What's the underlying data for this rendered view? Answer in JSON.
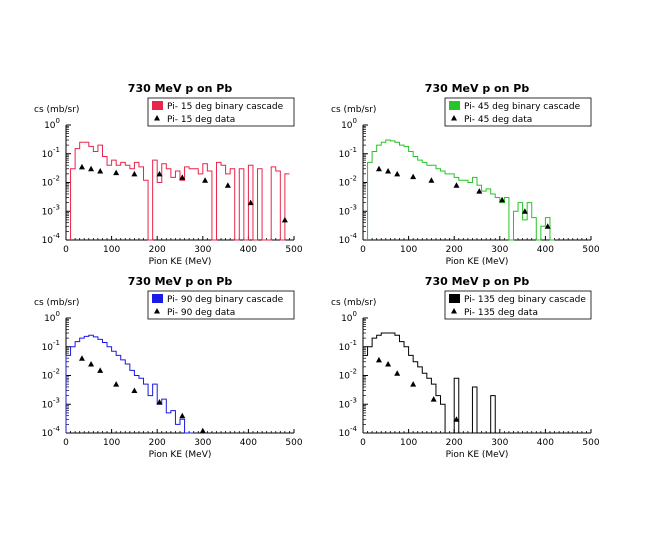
{
  "chart_data": [
    {
      "type": "line",
      "title": "730 MeV p on Pb",
      "ylabel": "cs (mb/sr)",
      "xlabel": "Pion KE (MeV)",
      "xlim": [
        0,
        500
      ],
      "ylim": [
        0.0001,
        1
      ],
      "yscale": "log",
      "xticks": [
        0,
        100,
        200,
        300,
        400,
        500
      ],
      "color": "#e8254a",
      "legend": {
        "placement": "top-right",
        "entries": [
          "Pi- 15 deg binary cascade",
          "Pi- 15 deg data"
        ]
      },
      "series": [
        {
          "name": "Pi- 15 deg binary cascade",
          "style": "step",
          "edges": [
            10,
            20,
            30,
            40,
            50,
            60,
            70,
            80,
            90,
            100,
            110,
            120,
            130,
            140,
            150,
            160,
            170,
            180,
            190,
            200,
            210,
            220,
            230,
            240,
            250,
            260,
            270,
            280,
            290,
            300,
            310,
            320,
            330,
            340,
            350,
            360,
            370,
            380,
            390,
            400,
            410,
            420,
            430,
            440,
            450,
            460,
            470,
            480,
            490
          ],
          "values": [
            0.03,
            0.15,
            0.25,
            0.25,
            0.18,
            0.12,
            0.2,
            0.08,
            0.04,
            0.06,
            0.04,
            0.05,
            0.04,
            0.03,
            0.05,
            0.035,
            0.012,
            0.0001,
            0.06,
            0.01,
            0.045,
            0.03,
            0.015,
            0.025,
            0.012,
            0.035,
            0.03,
            0.03,
            0.02,
            0.045,
            0.025,
            0.0001,
            0.05,
            0.04,
            0.02,
            0.03,
            0.0001,
            0.03,
            0.0001,
            0.04,
            0.0001,
            0.03,
            0.0001,
            0.0001,
            0.035,
            0.025,
            0.0001,
            0.02
          ]
        },
        {
          "name": "Pi- 15 deg data",
          "style": "markers",
          "x": [
            35,
            55,
            75,
            110,
            150,
            205,
            255,
            305,
            355,
            405,
            480
          ],
          "y": [
            0.035,
            0.03,
            0.025,
            0.022,
            0.02,
            0.02,
            0.015,
            0.012,
            0.008,
            0.002,
            0.0005
          ]
        }
      ]
    },
    {
      "type": "line",
      "title": "730 MeV p on Pb",
      "ylabel": "cs (mb/sr)",
      "xlabel": "Pion KE (MeV)",
      "xlim": [
        0,
        500
      ],
      "ylim": [
        0.0001,
        1
      ],
      "yscale": "log",
      "xticks": [
        0,
        100,
        200,
        300,
        400,
        500
      ],
      "color": "#27c427",
      "legend": {
        "placement": "top-right",
        "entries": [
          "Pi- 45 deg binary cascade",
          "Pi- 45 deg data"
        ]
      },
      "series": [
        {
          "name": "Pi- 45 deg binary cascade",
          "style": "step",
          "edges": [
            10,
            20,
            30,
            40,
            50,
            60,
            70,
            80,
            90,
            100,
            110,
            120,
            130,
            140,
            150,
            160,
            170,
            180,
            190,
            200,
            210,
            220,
            230,
            240,
            250,
            260,
            270,
            280,
            290,
            300,
            310,
            320,
            330,
            340,
            350,
            360,
            370,
            380,
            390,
            400,
            410,
            420
          ],
          "values": [
            0.05,
            0.12,
            0.2,
            0.25,
            0.3,
            0.28,
            0.25,
            0.2,
            0.18,
            0.12,
            0.08,
            0.06,
            0.05,
            0.04,
            0.04,
            0.03,
            0.025,
            0.02,
            0.02,
            0.015,
            0.012,
            0.012,
            0.01,
            0.015,
            0.008,
            0.005,
            0.006,
            0.004,
            0.003,
            0.002,
            0.003,
            0.0001,
            0.001,
            0.002,
            0.0005,
            0.002,
            0.0006,
            0.0001,
            0.0003,
            0.0006,
            0.0001
          ]
        },
        {
          "name": "Pi- 45 deg data",
          "style": "markers",
          "x": [
            35,
            55,
            75,
            110,
            150,
            205,
            255,
            305,
            355,
            405
          ],
          "y": [
            0.03,
            0.025,
            0.02,
            0.016,
            0.012,
            0.008,
            0.005,
            0.0025,
            0.001,
            0.0003
          ]
        }
      ]
    },
    {
      "type": "line",
      "title": "730 MeV p on Pb",
      "ylabel": "cs (mb/sr)",
      "xlabel": "Pion KE (MeV)",
      "xlim": [
        0,
        500
      ],
      "ylim": [
        0.0001,
        1
      ],
      "yscale": "log",
      "xticks": [
        0,
        100,
        200,
        300,
        400,
        500
      ],
      "color": "#1a1ae6",
      "legend": {
        "placement": "top-right",
        "entries": [
          "Pi- 90 deg binary cascade",
          "Pi- 90 deg data"
        ]
      },
      "series": [
        {
          "name": "Pi- 90 deg binary cascade",
          "style": "step",
          "edges": [
            0,
            10,
            20,
            30,
            40,
            50,
            60,
            70,
            80,
            90,
            100,
            110,
            120,
            130,
            140,
            150,
            160,
            170,
            180,
            190,
            200,
            210,
            220,
            230,
            240,
            250,
            260,
            270,
            280
          ],
          "values": [
            0.05,
            0.1,
            0.15,
            0.2,
            0.23,
            0.25,
            0.22,
            0.18,
            0.14,
            0.1,
            0.07,
            0.05,
            0.035,
            0.025,
            0.015,
            0.01,
            0.008,
            0.005,
            0.002,
            0.005,
            0.001,
            0.0015,
            0.0005,
            0.0006,
            0.0002,
            0.0003,
            0.0001,
            0.0001
          ]
        },
        {
          "name": "Pi- 90 deg data",
          "style": "markers",
          "x": [
            35,
            55,
            75,
            110,
            150,
            205,
            255,
            300
          ],
          "y": [
            0.04,
            0.025,
            0.015,
            0.005,
            0.003,
            0.0012,
            0.0004,
            0.00012
          ]
        }
      ]
    },
    {
      "type": "line",
      "title": "730 MeV p on Pb",
      "ylabel": "cs (mb/sr)",
      "xlabel": "Pion KE (MeV)",
      "xlim": [
        0,
        500
      ],
      "ylim": [
        0.0001,
        1
      ],
      "yscale": "log",
      "xticks": [
        0,
        100,
        200,
        300,
        400,
        500
      ],
      "color": "#000000",
      "legend": {
        "placement": "top-right",
        "entries": [
          "Pi- 135 deg binary cascade",
          "Pi- 135 deg data"
        ]
      },
      "series": [
        {
          "name": "Pi- 135 deg binary cascade",
          "style": "step",
          "edges": [
            0,
            10,
            20,
            30,
            40,
            50,
            60,
            70,
            80,
            90,
            100,
            110,
            120,
            130,
            140,
            150,
            160,
            170,
            180,
            190,
            200,
            210,
            220,
            230,
            240,
            250,
            260,
            270,
            280,
            290,
            300
          ],
          "values": [
            0.05,
            0.1,
            0.2,
            0.25,
            0.3,
            0.3,
            0.3,
            0.25,
            0.15,
            0.1,
            0.05,
            0.03,
            0.02,
            0.012,
            0.008,
            0.005,
            0.002,
            0.001,
            0.0001,
            0.0001,
            0.008,
            0.0001,
            0.0001,
            0.0001,
            0.004,
            0.0001,
            0.0001,
            0.0001,
            0.002,
            0.0001
          ]
        },
        {
          "name": "Pi- 135 deg data",
          "style": "markers",
          "x": [
            35,
            55,
            75,
            110,
            155,
            205
          ],
          "y": [
            0.035,
            0.025,
            0.012,
            0.005,
            0.0015,
            0.0003
          ]
        }
      ]
    }
  ]
}
